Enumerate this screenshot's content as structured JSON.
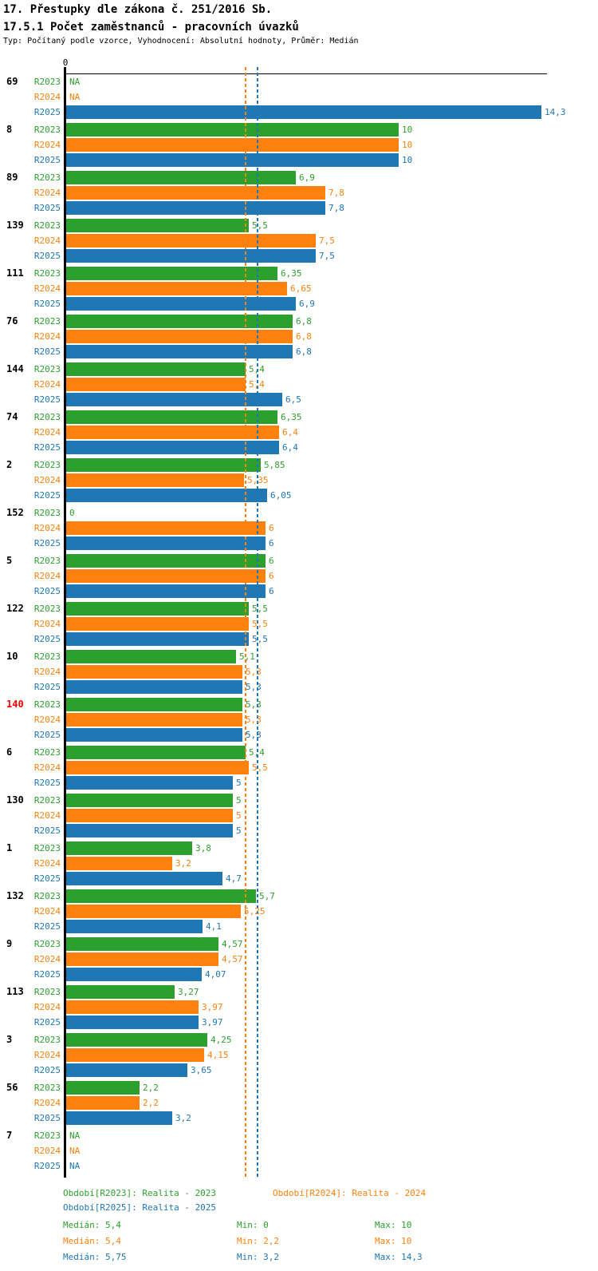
{
  "header": {
    "title": "17. Přestupky dle zákona č. 251/2016 Sb.",
    "subtitle": "17.5.1 Počet zaměstnanců - pracovních úvazků",
    "meta": "Typ: Počítaný podle vzorce, Vyhodnocení: Absolutní hodnoty, Průměr: Medián"
  },
  "colors": {
    "r2023_green": "#2ca02c",
    "r2024_orange": "#fd810e",
    "r2025_blue": "#1f77b4",
    "highlight_red": "#ff0000",
    "axis_black": "#000000"
  },
  "chart_data": {
    "type": "bar",
    "orientation": "horizontal",
    "x_axis": {
      "origin_tick_label": "0",
      "xlim": [
        0,
        14.3
      ],
      "ticks_visible": [
        "0"
      ]
    },
    "na_text": "NA",
    "grid": false,
    "legend_position": "bottom",
    "categories": [
      "69",
      "8",
      "89",
      "139",
      "111",
      "76",
      "144",
      "74",
      "2",
      "152",
      "5",
      "122",
      "10",
      "140",
      "6",
      "130",
      "1",
      "132",
      "9",
      "113",
      "3",
      "56",
      "7"
    ],
    "highlighted_category": "140",
    "series": [
      {
        "name": "R2023",
        "legend": "Období[R2023]: Realita - 2023",
        "color_key": "r2023_green",
        "values": [
          null,
          10,
          6.9,
          5.5,
          6.35,
          6.8,
          5.4,
          6.35,
          5.85,
          0,
          6,
          5.5,
          5.1,
          5.3,
          5.4,
          5,
          3.8,
          5.7,
          4.57,
          3.27,
          4.25,
          2.2,
          null
        ],
        "value_labels": [
          "NA",
          "10",
          "6,9",
          "5,5",
          "6,35",
          "6,8",
          "5,4",
          "6,35",
          "5,85",
          "0",
          "6",
          "5,5",
          "5,1",
          "5,3",
          "5,4",
          "5",
          "3,8",
          "5,7",
          "4,57",
          "3,27",
          "4,25",
          "2,2",
          "NA"
        ]
      },
      {
        "name": "R2024",
        "legend": "Období[R2024]: Realita - 2024",
        "color_key": "r2024_orange",
        "values": [
          null,
          10,
          7.8,
          7.5,
          6.65,
          6.8,
          5.4,
          6.4,
          5.35,
          6,
          6,
          5.5,
          5.3,
          5.3,
          5.5,
          5,
          3.2,
          5.25,
          4.57,
          3.97,
          4.15,
          2.2,
          null
        ],
        "value_labels": [
          "NA",
          "10",
          "7,8",
          "7,5",
          "6,65",
          "6,8",
          "5,4",
          "6,4",
          "5,35",
          "6",
          "6",
          "5,5",
          "5,3",
          "5,3",
          "5,5",
          "5",
          "3,2",
          "5,25",
          "4,57",
          "3,97",
          "4,15",
          "2,2",
          "NA"
        ]
      },
      {
        "name": "R2025",
        "legend": "Období[R2025]: Realita - 2025",
        "color_key": "r2025_blue",
        "values": [
          14.3,
          10,
          7.8,
          7.5,
          6.9,
          6.8,
          6.5,
          6.4,
          6.05,
          6,
          6,
          5.5,
          5.3,
          5.3,
          5,
          5,
          4.7,
          4.1,
          4.07,
          3.97,
          3.65,
          3.2,
          null
        ],
        "value_labels": [
          "14,3",
          "10",
          "7,8",
          "7,5",
          "6,9",
          "6,8",
          "6,5",
          "6,4",
          "6,05",
          "6",
          "6",
          "5,5",
          "5,3",
          "5,3",
          "5",
          "5",
          "4,7",
          "4,1",
          "4,07",
          "3,97",
          "3,65",
          "3,2",
          "NA"
        ]
      }
    ],
    "reference_lines": [
      {
        "name": "Medián R2023",
        "value": 5.4,
        "color_key": "r2023_green"
      },
      {
        "name": "Medián R2024",
        "value": 5.4,
        "color_key": "r2024_orange"
      },
      {
        "name": "Medián R2025",
        "value": 5.75,
        "color_key": "r2025_blue"
      }
    ]
  },
  "stats": {
    "rows": [
      {
        "series": "R2023",
        "color_key": "r2023_green",
        "median_label": "Medián: 5,4",
        "min_label": "Min: 0",
        "max_label": "Max: 10"
      },
      {
        "series": "R2024",
        "color_key": "r2024_orange",
        "median_label": "Medián: 5,4",
        "min_label": "Min: 2,2",
        "max_label": "Max: 10"
      },
      {
        "series": "R2025",
        "color_key": "r2025_blue",
        "median_label": "Medián: 5,75",
        "min_label": "Min: 3,2",
        "max_label": "Max: 14,3"
      }
    ]
  }
}
